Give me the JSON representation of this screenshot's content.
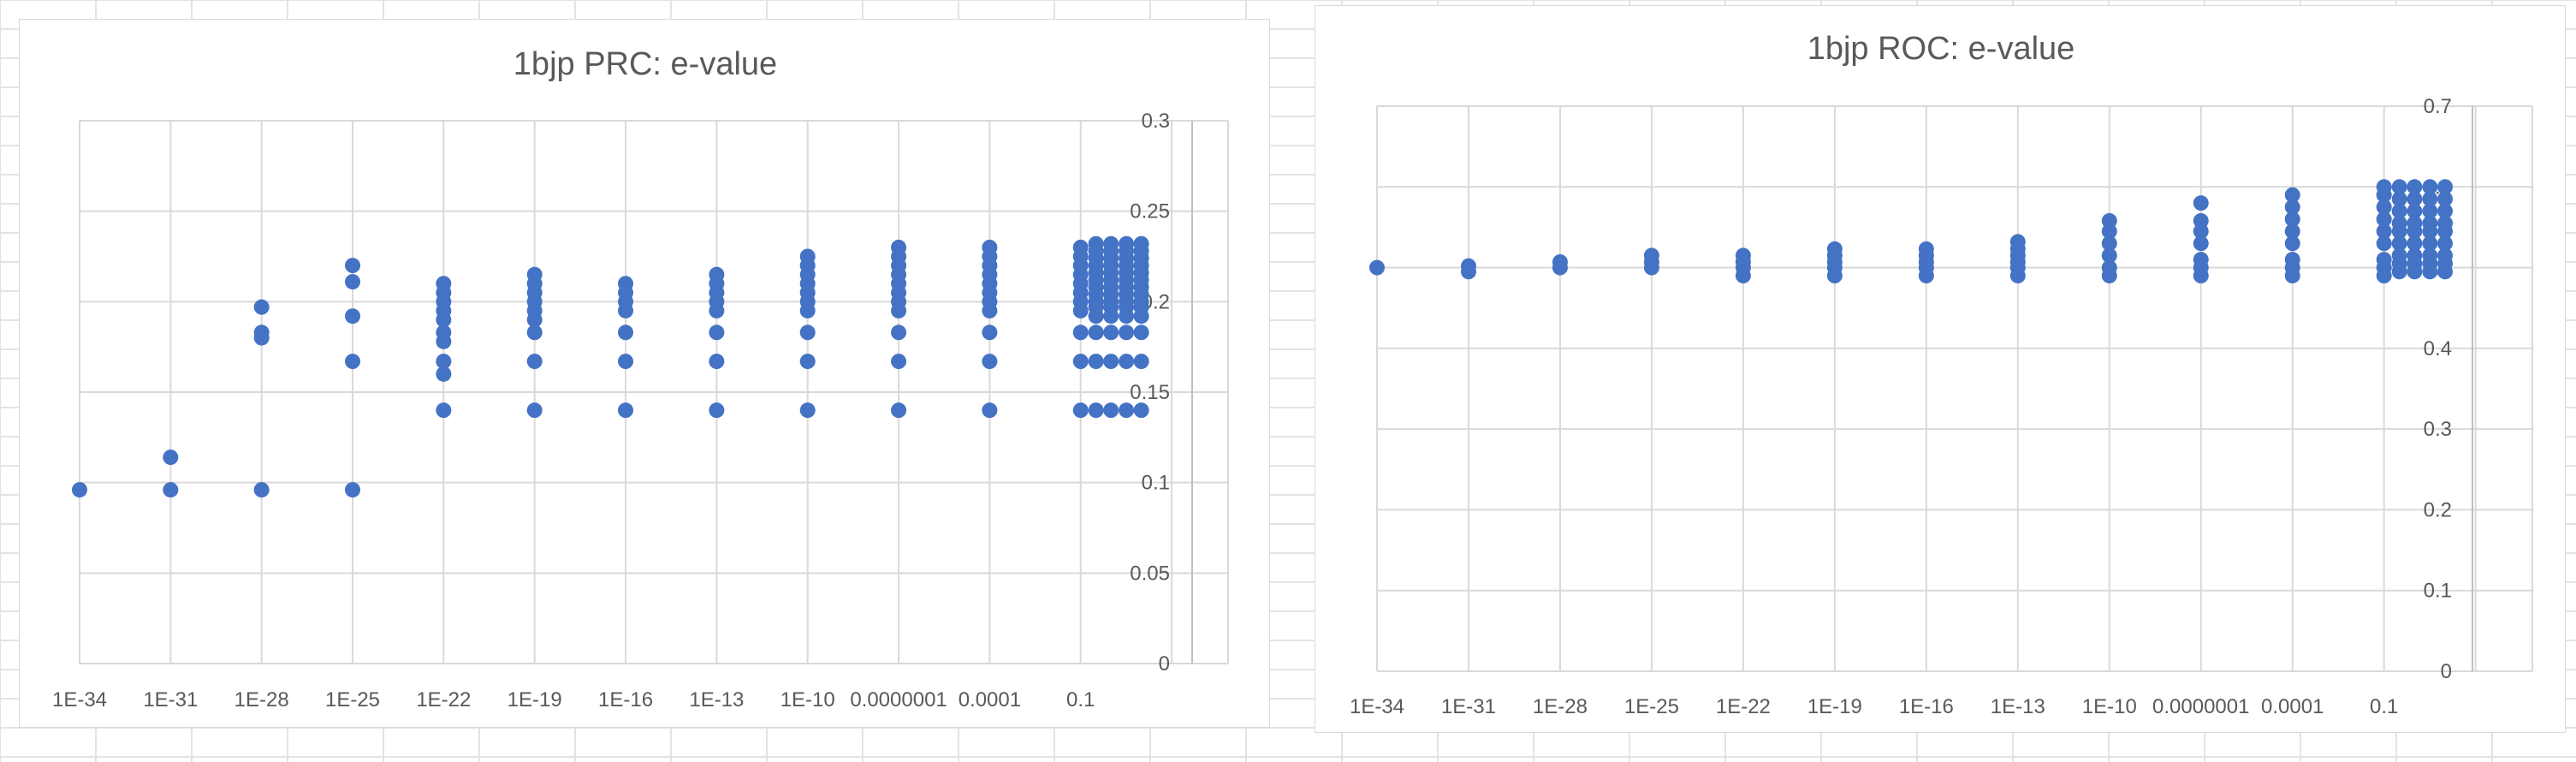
{
  "colors": {
    "marker": "#4472c4",
    "grid": "#d9d9d9",
    "text": "#595959",
    "cell_grid": "#e3e3e3"
  },
  "chart_data": [
    {
      "type": "scatter",
      "title": "1bjp PRC: e-value",
      "xlabel": "",
      "ylabel": "",
      "x_scale": "log",
      "x_tick_labels": [
        "1E-34",
        "1E-31",
        "1E-28",
        "1E-25",
        "1E-22",
        "1E-19",
        "1E-16",
        "1E-13",
        "1E-10",
        "0.0000001",
        "0.0001",
        "0.1"
      ],
      "y_tick_labels": [
        "0",
        "0.05",
        "0.1",
        "0.15",
        "0.2",
        "0.25",
        "0.3"
      ],
      "ylim": [
        0,
        0.3
      ],
      "grid": true,
      "legend": "none",
      "series": [
        {
          "points": [
            [
              "1E-34",
              0.096
            ],
            [
              "1E-31",
              0.096
            ],
            [
              "1E-31",
              0.114
            ],
            [
              "1E-28",
              0.096
            ],
            [
              "1E-28",
              0.18
            ],
            [
              "1E-28",
              0.183
            ],
            [
              "1E-28",
              0.197
            ],
            [
              "1E-25",
              0.096
            ],
            [
              "1E-25",
              0.167
            ],
            [
              "1E-25",
              0.192
            ],
            [
              "1E-25",
              0.211
            ],
            [
              "1E-25",
              0.22
            ],
            [
              "1E-22",
              0.14
            ],
            [
              "1E-22",
              0.16
            ],
            [
              "1E-22",
              0.167
            ],
            [
              "1E-22",
              0.178
            ],
            [
              "1E-22",
              0.183
            ],
            [
              "1E-22",
              0.19
            ],
            [
              "1E-22",
              0.195
            ],
            [
              "1E-22",
              0.2
            ],
            [
              "1E-22",
              0.205
            ],
            [
              "1E-22",
              0.21
            ],
            [
              "1E-19",
              0.14
            ],
            [
              "1E-19",
              0.167
            ],
            [
              "1E-19",
              0.183
            ],
            [
              "1E-19",
              0.19
            ],
            [
              "1E-19",
              0.195
            ],
            [
              "1E-19",
              0.2
            ],
            [
              "1E-19",
              0.205
            ],
            [
              "1E-19",
              0.21
            ],
            [
              "1E-19",
              0.215
            ],
            [
              "1E-16",
              0.14
            ],
            [
              "1E-16",
              0.167
            ],
            [
              "1E-16",
              0.183
            ],
            [
              "1E-16",
              0.195
            ],
            [
              "1E-16",
              0.2
            ],
            [
              "1E-16",
              0.205
            ],
            [
              "1E-16",
              0.21
            ],
            [
              "1E-13",
              0.14
            ],
            [
              "1E-13",
              0.167
            ],
            [
              "1E-13",
              0.183
            ],
            [
              "1E-13",
              0.195
            ],
            [
              "1E-13",
              0.2
            ],
            [
              "1E-13",
              0.205
            ],
            [
              "1E-13",
              0.21
            ],
            [
              "1E-13",
              0.215
            ],
            [
              "1E-10",
              0.14
            ],
            [
              "1E-10",
              0.167
            ],
            [
              "1E-10",
              0.183
            ],
            [
              "1E-10",
              0.195
            ],
            [
              "1E-10",
              0.2
            ],
            [
              "1E-10",
              0.205
            ],
            [
              "1E-10",
              0.21
            ],
            [
              "1E-10",
              0.215
            ],
            [
              "1E-10",
              0.22
            ],
            [
              "1E-10",
              0.225
            ],
            [
              "0.0000001",
              0.14
            ],
            [
              "0.0000001",
              0.167
            ],
            [
              "0.0000001",
              0.183
            ],
            [
              "0.0000001",
              0.195
            ],
            [
              "0.0000001",
              0.2
            ],
            [
              "0.0000001",
              0.205
            ],
            [
              "0.0000001",
              0.21
            ],
            [
              "0.0000001",
              0.215
            ],
            [
              "0.0000001",
              0.22
            ],
            [
              "0.0000001",
              0.225
            ],
            [
              "0.0000001",
              0.23
            ],
            [
              "0.0001",
              0.14
            ],
            [
              "0.0001",
              0.167
            ],
            [
              "0.0001",
              0.183
            ],
            [
              "0.0001",
              0.195
            ],
            [
              "0.0001",
              0.2
            ],
            [
              "0.0001",
              0.205
            ],
            [
              "0.0001",
              0.21
            ],
            [
              "0.0001",
              0.215
            ],
            [
              "0.0001",
              0.22
            ],
            [
              "0.0001",
              0.225
            ],
            [
              "0.0001",
              0.23
            ],
            [
              "0.1",
              0.14
            ],
            [
              "0.1",
              0.167
            ],
            [
              "0.1",
              0.183
            ],
            [
              "0.1",
              0.195
            ],
            [
              "0.1",
              0.2
            ],
            [
              "0.1",
              0.205
            ],
            [
              "0.1",
              0.21
            ],
            [
              "0.1",
              0.215
            ],
            [
              "0.1",
              0.22
            ],
            [
              "0.1",
              0.225
            ],
            [
              "0.1",
              0.23
            ],
            [
              "0.32",
              0.14
            ],
            [
              "0.32",
              0.167
            ],
            [
              "0.32",
              0.183
            ],
            [
              "0.32",
              0.192
            ],
            [
              "0.32",
              0.197
            ],
            [
              "0.32",
              0.2
            ],
            [
              "0.32",
              0.204
            ],
            [
              "0.32",
              0.208
            ],
            [
              "0.32",
              0.212
            ],
            [
              "0.32",
              0.216
            ],
            [
              "0.32",
              0.22
            ],
            [
              "0.32",
              0.224
            ],
            [
              "0.32",
              0.228
            ],
            [
              "0.32",
              0.232
            ],
            [
              "1",
              0.14
            ],
            [
              "1",
              0.167
            ],
            [
              "1",
              0.183
            ],
            [
              "1",
              0.192
            ],
            [
              "1",
              0.197
            ],
            [
              "1",
              0.2
            ],
            [
              "1",
              0.204
            ],
            [
              "1",
              0.208
            ],
            [
              "1",
              0.212
            ],
            [
              "1",
              0.216
            ],
            [
              "1",
              0.22
            ],
            [
              "1",
              0.224
            ],
            [
              "1",
              0.228
            ],
            [
              "1",
              0.232
            ],
            [
              "3.2",
              0.14
            ],
            [
              "3.2",
              0.167
            ],
            [
              "3.2",
              0.183
            ],
            [
              "3.2",
              0.192
            ],
            [
              "3.2",
              0.197
            ],
            [
              "3.2",
              0.2
            ],
            [
              "3.2",
              0.204
            ],
            [
              "3.2",
              0.208
            ],
            [
              "3.2",
              0.212
            ],
            [
              "3.2",
              0.216
            ],
            [
              "3.2",
              0.22
            ],
            [
              "3.2",
              0.224
            ],
            [
              "3.2",
              0.228
            ],
            [
              "3.2",
              0.232
            ],
            [
              "10",
              0.14
            ],
            [
              "10",
              0.167
            ],
            [
              "10",
              0.183
            ],
            [
              "10",
              0.192
            ],
            [
              "10",
              0.197
            ],
            [
              "10",
              0.2
            ],
            [
              "10",
              0.204
            ],
            [
              "10",
              0.208
            ],
            [
              "10",
              0.212
            ],
            [
              "10",
              0.216
            ],
            [
              "10",
              0.22
            ],
            [
              "10",
              0.224
            ],
            [
              "10",
              0.228
            ],
            [
              "10",
              0.232
            ]
          ]
        }
      ]
    },
    {
      "type": "scatter",
      "title": "1bjp ROC: e-value",
      "xlabel": "",
      "ylabel": "",
      "x_scale": "log",
      "x_tick_labels": [
        "1E-34",
        "1E-31",
        "1E-28",
        "1E-25",
        "1E-22",
        "1E-19",
        "1E-16",
        "1E-13",
        "1E-10",
        "0.0000001",
        "0.0001",
        "0.1"
      ],
      "y_tick_labels": [
        "0",
        "0.1",
        "0.2",
        "0.3",
        "0.4",
        "0.5",
        "0.6",
        "0.7"
      ],
      "ylim": [
        0,
        0.7
      ],
      "grid": true,
      "legend": "none",
      "series": [
        {
          "points": [
            [
              "1E-34",
              0.5
            ],
            [
              "1E-31",
              0.495
            ],
            [
              "1E-31",
              0.502
            ],
            [
              "1E-28",
              0.5
            ],
            [
              "1E-28",
              0.507
            ],
            [
              "1E-25",
              0.5
            ],
            [
              "1E-25",
              0.507
            ],
            [
              "1E-25",
              0.515
            ],
            [
              "1E-22",
              0.49
            ],
            [
              "1E-22",
              0.5
            ],
            [
              "1E-22",
              0.507
            ],
            [
              "1E-22",
              0.515
            ],
            [
              "1E-19",
              0.49
            ],
            [
              "1E-19",
              0.5
            ],
            [
              "1E-19",
              0.507
            ],
            [
              "1E-19",
              0.515
            ],
            [
              "1E-19",
              0.523
            ],
            [
              "1E-16",
              0.49
            ],
            [
              "1E-16",
              0.5
            ],
            [
              "1E-16",
              0.507
            ],
            [
              "1E-16",
              0.515
            ],
            [
              "1E-16",
              0.523
            ],
            [
              "1E-13",
              0.49
            ],
            [
              "1E-13",
              0.5
            ],
            [
              "1E-13",
              0.507
            ],
            [
              "1E-13",
              0.515
            ],
            [
              "1E-13",
              0.523
            ],
            [
              "1E-13",
              0.532
            ],
            [
              "1E-10",
              0.49
            ],
            [
              "1E-10",
              0.5
            ],
            [
              "1E-10",
              0.515
            ],
            [
              "1E-10",
              0.53
            ],
            [
              "1E-10",
              0.545
            ],
            [
              "1E-10",
              0.558
            ],
            [
              "0.0000001",
              0.49
            ],
            [
              "0.0000001",
              0.5
            ],
            [
              "0.0000001",
              0.51
            ],
            [
              "0.0000001",
              0.53
            ],
            [
              "0.0000001",
              0.545
            ],
            [
              "0.0000001",
              0.558
            ],
            [
              "0.0000001",
              0.58
            ],
            [
              "0.0001",
              0.49
            ],
            [
              "0.0001",
              0.5
            ],
            [
              "0.0001",
              0.51
            ],
            [
              "0.0001",
              0.53
            ],
            [
              "0.0001",
              0.545
            ],
            [
              "0.0001",
              0.56
            ],
            [
              "0.0001",
              0.575
            ],
            [
              "0.0001",
              0.59
            ],
            [
              "0.1",
              0.49
            ],
            [
              "0.1",
              0.5
            ],
            [
              "0.1",
              0.51
            ],
            [
              "0.1",
              0.53
            ],
            [
              "0.1",
              0.545
            ],
            [
              "0.1",
              0.56
            ],
            [
              "0.1",
              0.575
            ],
            [
              "0.1",
              0.59
            ],
            [
              "0.1",
              0.6
            ],
            [
              "0.32",
              0.495
            ],
            [
              "0.32",
              0.505
            ],
            [
              "0.32",
              0.515
            ],
            [
              "0.32",
              0.53
            ],
            [
              "0.32",
              0.545
            ],
            [
              "0.32",
              0.555
            ],
            [
              "0.32",
              0.57
            ],
            [
              "0.32",
              0.585
            ],
            [
              "0.32",
              0.6
            ],
            [
              "1",
              0.495
            ],
            [
              "1",
              0.505
            ],
            [
              "1",
              0.515
            ],
            [
              "1",
              0.53
            ],
            [
              "1",
              0.545
            ],
            [
              "1",
              0.555
            ],
            [
              "1",
              0.57
            ],
            [
              "1",
              0.585
            ],
            [
              "1",
              0.6
            ],
            [
              "3.2",
              0.495
            ],
            [
              "3.2",
              0.505
            ],
            [
              "3.2",
              0.515
            ],
            [
              "3.2",
              0.53
            ],
            [
              "3.2",
              0.545
            ],
            [
              "3.2",
              0.555
            ],
            [
              "3.2",
              0.57
            ],
            [
              "3.2",
              0.585
            ],
            [
              "3.2",
              0.6
            ],
            [
              "10",
              0.495
            ],
            [
              "10",
              0.505
            ],
            [
              "10",
              0.515
            ],
            [
              "10",
              0.53
            ],
            [
              "10",
              0.545
            ],
            [
              "10",
              0.555
            ],
            [
              "10",
              0.57
            ],
            [
              "10",
              0.585
            ],
            [
              "10",
              0.6
            ]
          ]
        }
      ]
    }
  ]
}
